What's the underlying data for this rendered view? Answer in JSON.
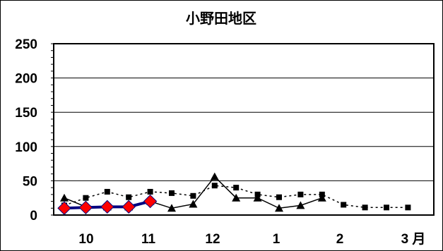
{
  "chart_data": {
    "type": "line",
    "title": "小野田地区",
    "xlabel": "",
    "ylabel": "",
    "ylim": [
      0,
      250
    ],
    "y_ticks": [
      0,
      50,
      100,
      150,
      200,
      250
    ],
    "x_tick_labels": [
      "10",
      "11",
      "12",
      "1",
      "2",
      "3 月"
    ],
    "grid": true,
    "legend": "none",
    "series": [
      {
        "style": "dotted",
        "marker": "square",
        "color": "#000000",
        "values": [
          14,
          25,
          34,
          26,
          34,
          32,
          28,
          43,
          40,
          30,
          26,
          30,
          30,
          15,
          11,
          11,
          11
        ]
      },
      {
        "style": "solid",
        "marker": "triangle",
        "color": "#000000",
        "values": [
          25,
          12,
          12,
          12,
          20,
          10,
          16,
          56,
          25,
          25,
          10,
          14,
          25,
          null,
          null,
          null,
          null
        ]
      },
      {
        "style": "solid",
        "marker": "diamond",
        "color": "#ff0000",
        "line_color": "#000080",
        "values": [
          10,
          11,
          12,
          12,
          20,
          null,
          null,
          null,
          null,
          null,
          null,
          null,
          null,
          null,
          null,
          null,
          null
        ]
      }
    ]
  }
}
